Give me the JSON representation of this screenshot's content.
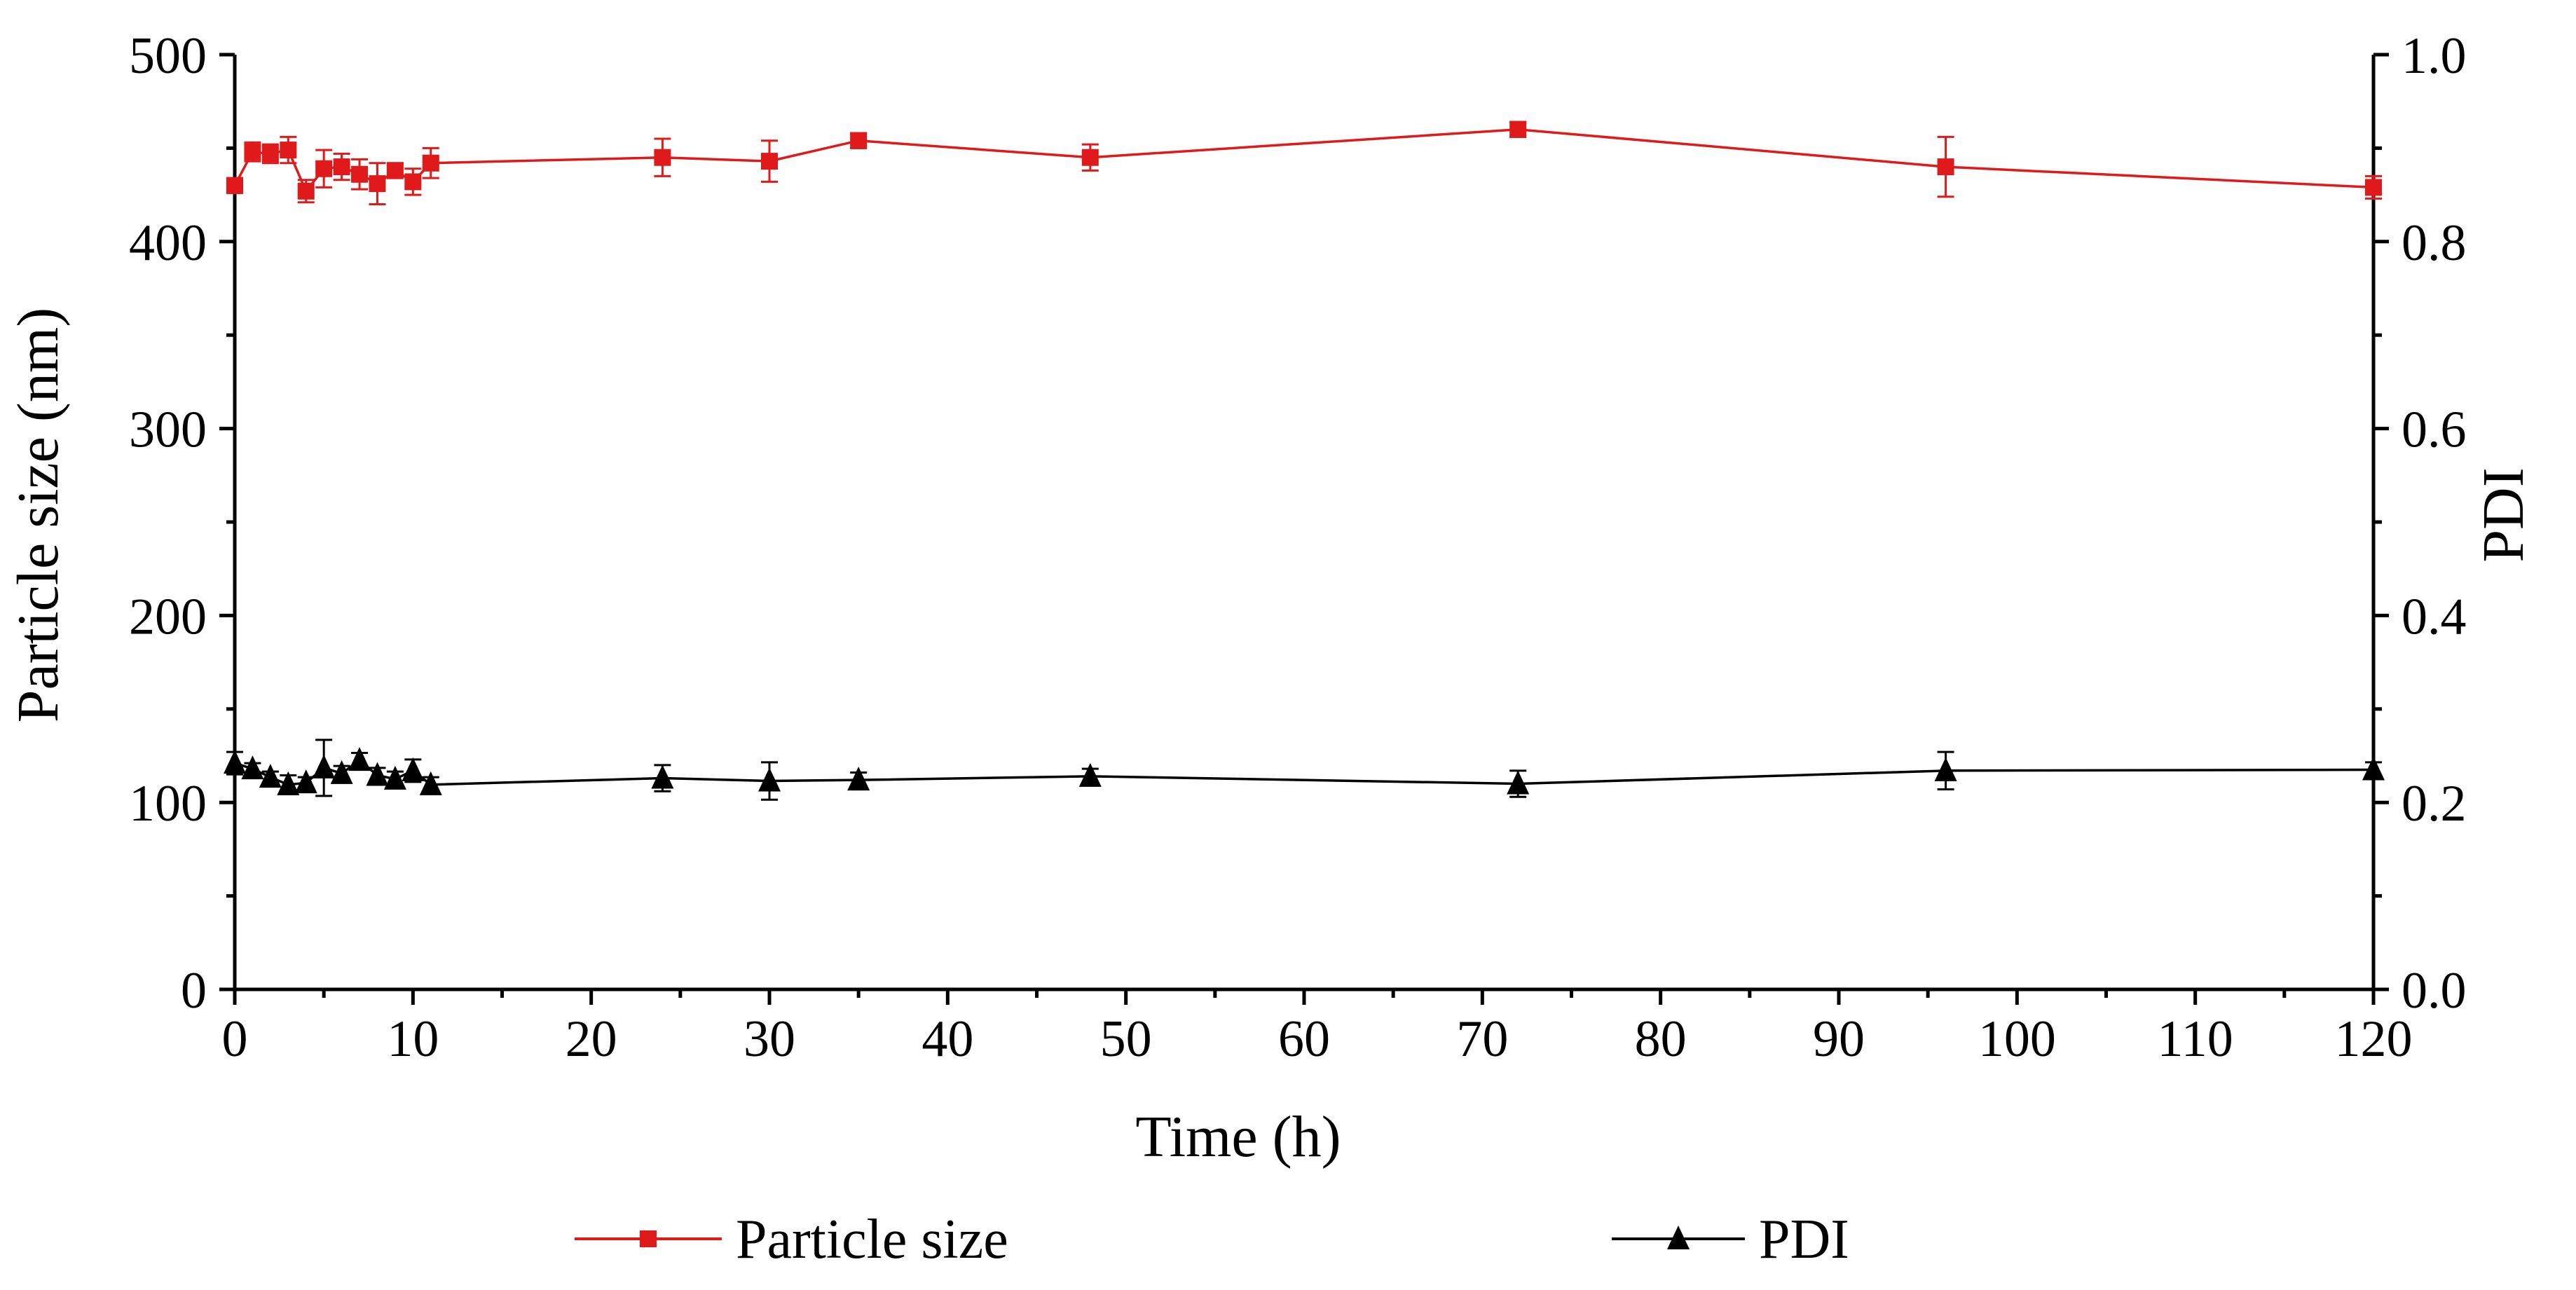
{
  "colors": {
    "particle": "#e01a1a",
    "pdi": "#000000",
    "axis": "#000000"
  },
  "chart_data": {
    "type": "line",
    "title": "",
    "xlabel": "Time (h)",
    "ylabel_left": "Particle size (nm)",
    "ylabel_right": "PDI",
    "xlim": [
      0,
      120
    ],
    "ylim_left": [
      0,
      500
    ],
    "ylim_right": [
      0.0,
      1.0
    ],
    "x_ticks": [
      0,
      10,
      20,
      30,
      40,
      50,
      60,
      70,
      80,
      90,
      100,
      110,
      120
    ],
    "x_tick_labels": [
      "0",
      "10",
      "20",
      "30",
      "40",
      "50",
      "60",
      "70",
      "80",
      "90",
      "100",
      "110",
      "120"
    ],
    "y_left_ticks": [
      0,
      100,
      200,
      300,
      400,
      500
    ],
    "y_left_tick_labels": [
      "0",
      "100",
      "200",
      "300",
      "400",
      "500"
    ],
    "y_right_ticks": [
      0.0,
      0.2,
      0.4,
      0.6,
      0.8,
      1.0
    ],
    "y_right_tick_labels": [
      "0.0",
      "0.2",
      "0.4",
      "0.6",
      "0.8",
      "1.0"
    ],
    "grid": false,
    "legend_position": "bottom",
    "series": [
      {
        "name": "Particle size",
        "axis": "left",
        "marker": "square",
        "x": [
          0,
          1,
          2,
          3,
          4,
          5,
          6,
          7,
          8,
          9,
          10,
          11,
          24,
          30,
          35,
          48,
          72,
          96,
          120
        ],
        "y": [
          430,
          448,
          447,
          449,
          427,
          439,
          440,
          436,
          431,
          438,
          432,
          442,
          445,
          443,
          454,
          445,
          460,
          440,
          429
        ],
        "err": [
          4,
          5,
          5,
          7,
          6,
          10,
          7,
          8,
          11,
          4,
          7,
          8,
          10,
          11,
          4,
          7,
          4,
          16,
          6
        ]
      },
      {
        "name": "PDI",
        "axis": "right",
        "marker": "triangle",
        "x": [
          0,
          1,
          2,
          3,
          4,
          5,
          6,
          7,
          8,
          9,
          10,
          11,
          24,
          30,
          35,
          48,
          72,
          96,
          120
        ],
        "y": [
          0.242,
          0.236,
          0.227,
          0.219,
          0.221,
          0.237,
          0.231,
          0.245,
          0.229,
          0.225,
          0.234,
          0.219,
          0.226,
          0.223,
          0.224,
          0.228,
          0.22,
          0.234,
          0.235
        ],
        "err": [
          0.012,
          0.006,
          0.006,
          0.01,
          0.006,
          0.03,
          0.008,
          0.008,
          0.008,
          0.008,
          0.012,
          0.008,
          0.014,
          0.02,
          0.008,
          0.008,
          0.014,
          0.02,
          0.008
        ]
      }
    ]
  }
}
